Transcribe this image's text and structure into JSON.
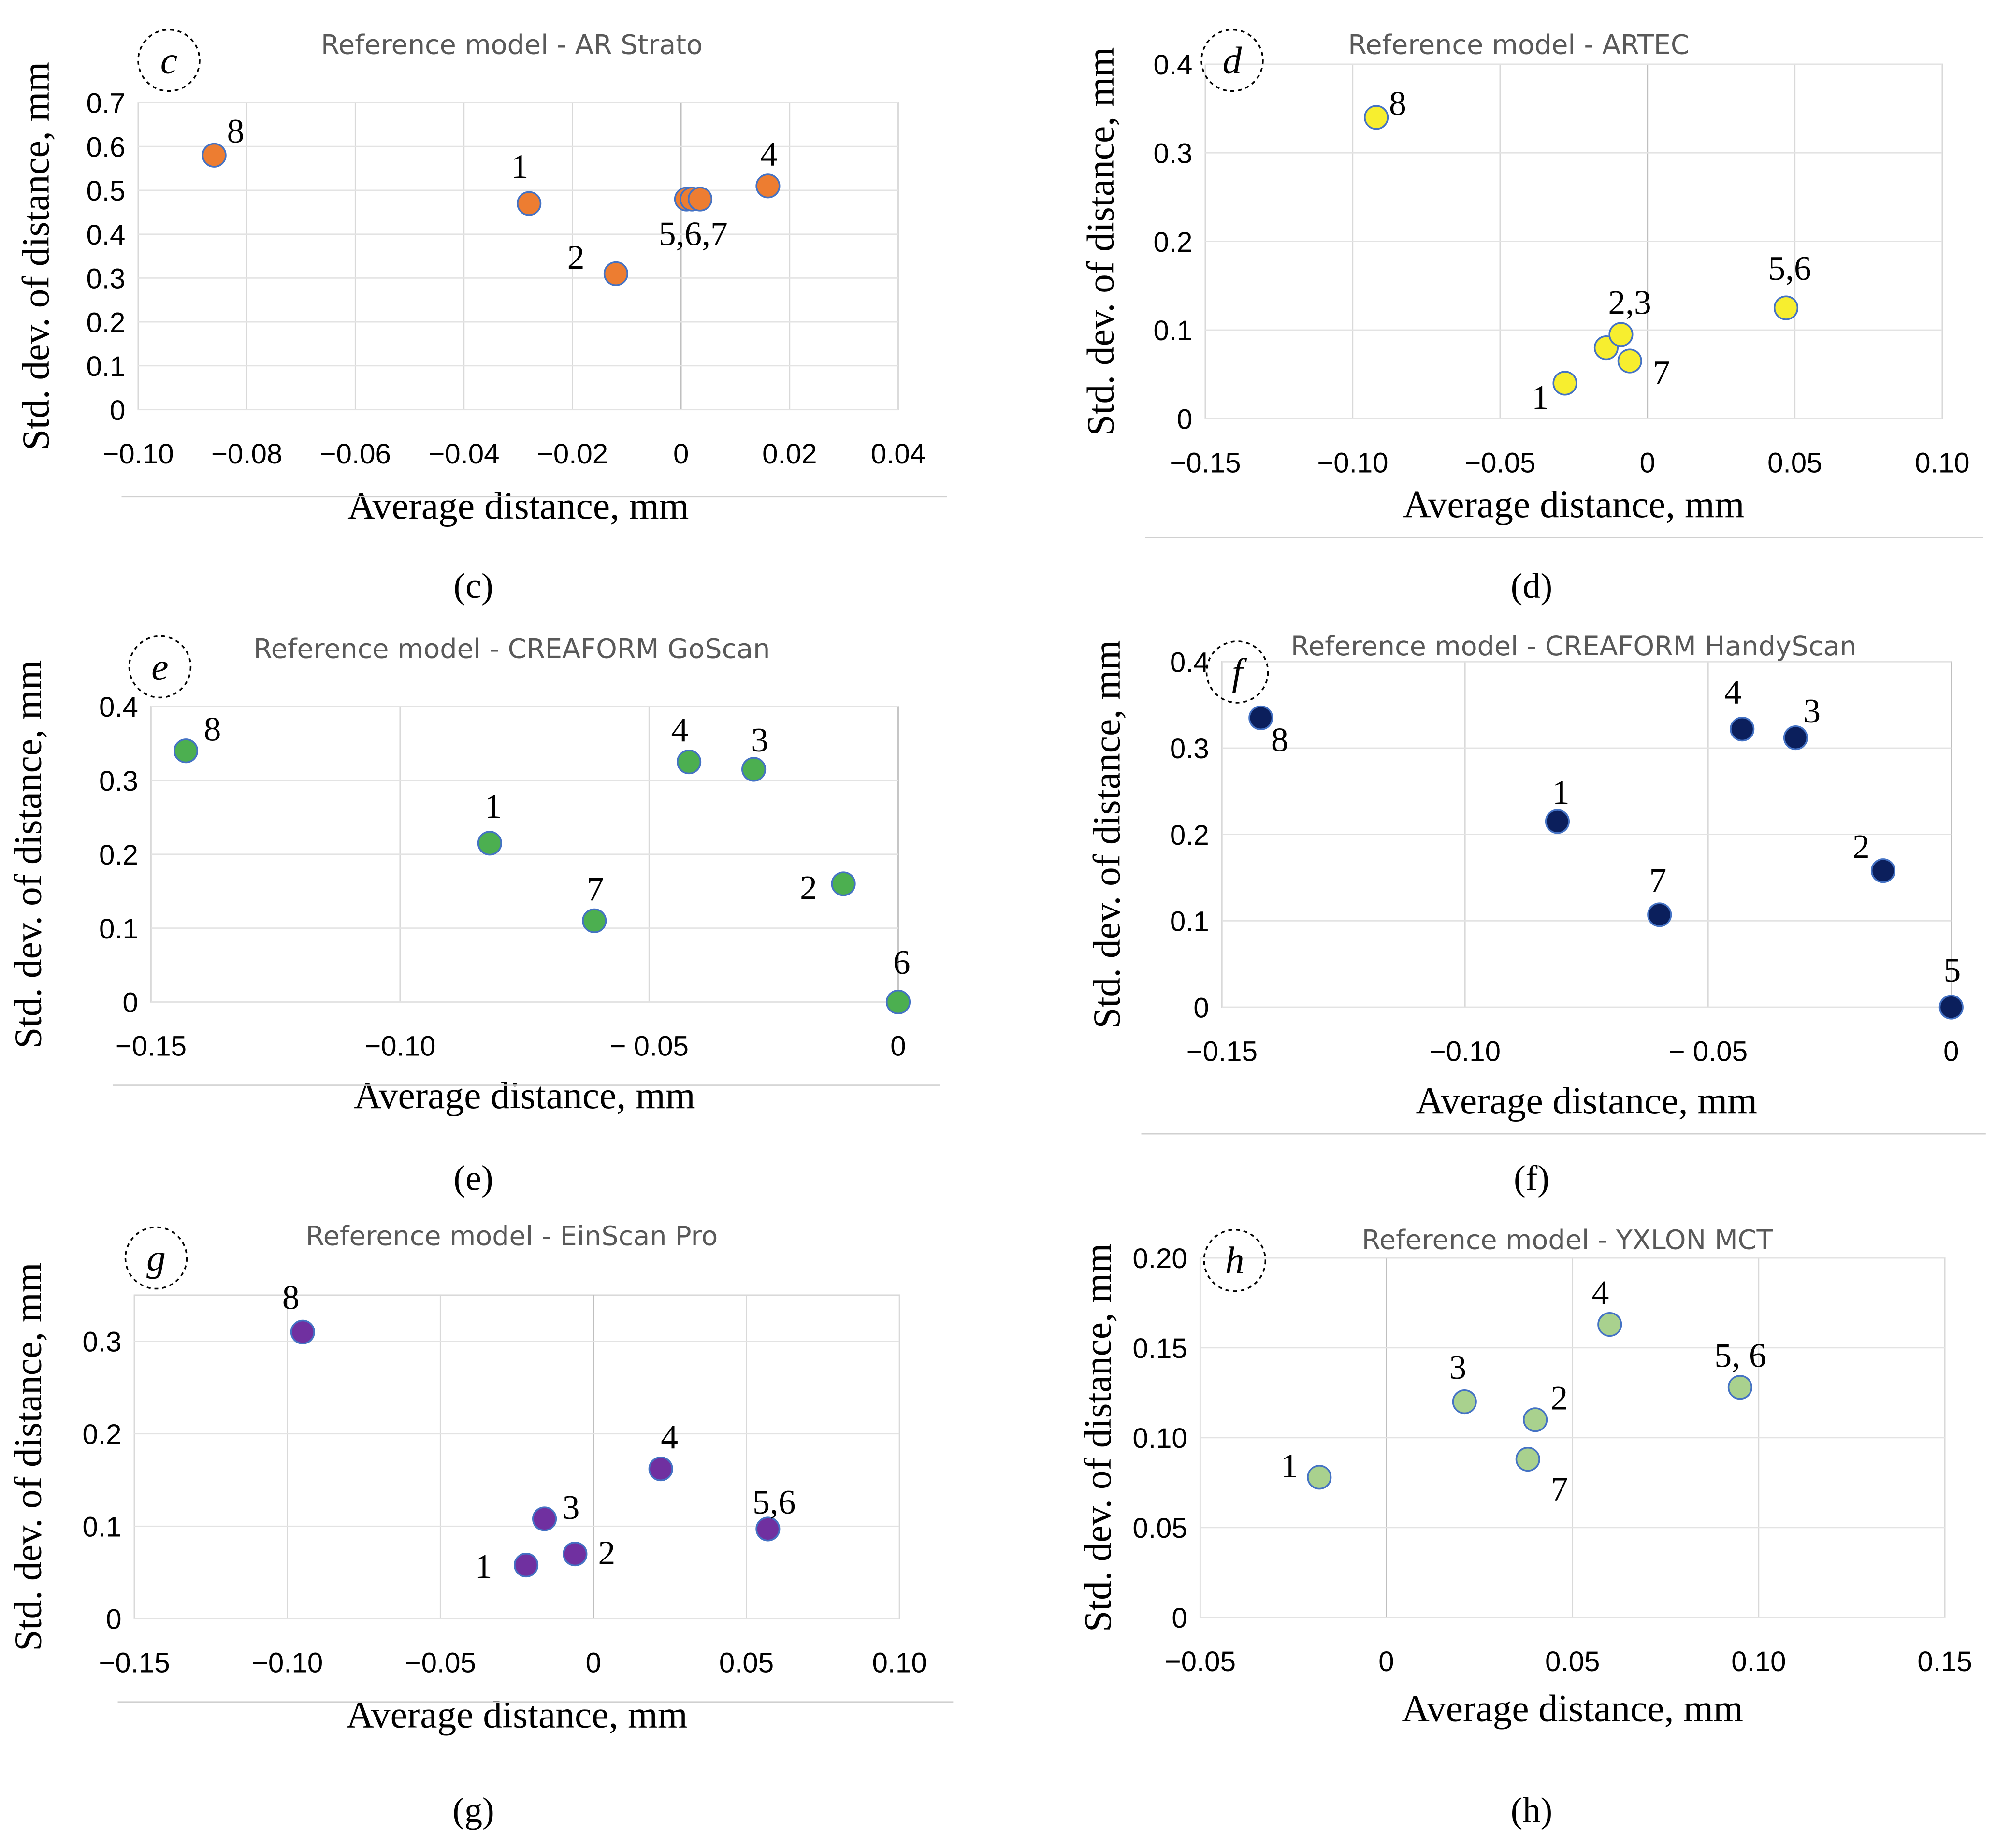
{
  "chart_data": [
    {
      "type": "scatter",
      "panel": "c",
      "title": "Reference model - AR Strato",
      "xlabel": "Average distance, mm",
      "ylabel": "Std. dev. of distance, mm",
      "caption": "(c)",
      "xlim": [
        -0.1,
        0.04
      ],
      "ylim": [
        0,
        0.7
      ],
      "xticks": [
        -0.1,
        -0.08,
        -0.06,
        -0.04,
        -0.02,
        0,
        0.02,
        0.04
      ],
      "xtick_labels": [
        "−0.10",
        "−0.08",
        "−0.06",
        "−0.04",
        "−0.02",
        "0",
        "0.02",
        "0.04"
      ],
      "yticks": [
        0,
        0.1,
        0.2,
        0.3,
        0.4,
        0.5,
        0.6,
        0.7
      ],
      "ytick_labels": [
        "0",
        "0.1",
        "0.2",
        "0.3",
        "0.4",
        "0.5",
        "0.6",
        "0.7"
      ],
      "color": "#ED7D31",
      "points": [
        {
          "label": "8",
          "x": -0.086,
          "y": 0.58
        },
        {
          "label": "1",
          "x": -0.028,
          "y": 0.47
        },
        {
          "label": "2",
          "x": -0.012,
          "y": 0.31
        },
        {
          "label": "",
          "x": 0.001,
          "y": 0.48
        },
        {
          "label": "5,6,7",
          "x": 0.002,
          "y": 0.48
        },
        {
          "label": "",
          "x": 0.0035,
          "y": 0.48
        },
        {
          "label": "4",
          "x": 0.016,
          "y": 0.51
        }
      ]
    },
    {
      "type": "scatter",
      "panel": "d",
      "title": "Reference model - ARTEC",
      "xlabel": "Average distance, mm",
      "ylabel": "Std. dev. of distance, mm",
      "caption": "(d)",
      "xlim": [
        -0.15,
        0.1
      ],
      "ylim": [
        0,
        0.4
      ],
      "xticks": [
        -0.15,
        -0.1,
        -0.05,
        0,
        0.05,
        0.1
      ],
      "xtick_labels": [
        "−0.15",
        "−0.10",
        "−0.05",
        "0",
        "0.05",
        "0.10"
      ],
      "yticks": [
        0,
        0.1,
        0.2,
        0.3,
        0.4
      ],
      "ytick_labels": [
        "0",
        "0.1",
        "0.2",
        "0.3",
        "0.4"
      ],
      "color": "#F7EE2F",
      "points": [
        {
          "label": "8",
          "x": -0.092,
          "y": 0.34
        },
        {
          "label": "1",
          "x": -0.028,
          "y": 0.04
        },
        {
          "label": "",
          "x": -0.014,
          "y": 0.08
        },
        {
          "label": "2,3",
          "x": -0.009,
          "y": 0.095
        },
        {
          "label": "7",
          "x": -0.006,
          "y": 0.065
        },
        {
          "label": "5,6",
          "x": 0.047,
          "y": 0.125
        }
      ]
    },
    {
      "type": "scatter",
      "panel": "e",
      "title": "Reference model - CREAFORM GoScan",
      "xlabel": "Average distance, mm",
      "ylabel": "Std. dev. of distance, mm",
      "caption": "(e)",
      "xlim": [
        -0.15,
        0
      ],
      "ylim": [
        0,
        0.4
      ],
      "xticks": [
        -0.15,
        -0.1,
        -0.05,
        0
      ],
      "xtick_labels": [
        "−0.15",
        "−0.10",
        "− 0.05",
        "0"
      ],
      "yticks": [
        0,
        0.1,
        0.2,
        0.3,
        0.4
      ],
      "ytick_labels": [
        "0",
        "0.1",
        "0.2",
        "0.3",
        "0.4"
      ],
      "color": "#4CAF50",
      "points": [
        {
          "label": "8",
          "x": -0.143,
          "y": 0.34
        },
        {
          "label": "1",
          "x": -0.082,
          "y": 0.215
        },
        {
          "label": "7",
          "x": -0.061,
          "y": 0.11
        },
        {
          "label": "4",
          "x": -0.042,
          "y": 0.325
        },
        {
          "label": "3",
          "x": -0.029,
          "y": 0.315
        },
        {
          "label": "2",
          "x": -0.011,
          "y": 0.16
        },
        {
          "label": "6",
          "x": 0.0,
          "y": 0.0
        }
      ]
    },
    {
      "type": "scatter",
      "panel": "f",
      "title": "Reference model - CREAFORM HandyScan",
      "xlabel": "Average distance, mm",
      "ylabel": "Std. dev. of distance, mm",
      "caption": "(f)",
      "xlim": [
        -0.15,
        0
      ],
      "ylim": [
        0,
        0.4
      ],
      "xticks": [
        -0.15,
        -0.1,
        -0.05,
        0
      ],
      "xtick_labels": [
        "−0.15",
        "−0.10",
        "− 0.05",
        "0"
      ],
      "yticks": [
        0,
        0.1,
        0.2,
        0.3,
        0.4
      ],
      "ytick_labels": [
        "0",
        "0.1",
        "0.2",
        "0.3",
        "0.4"
      ],
      "color": "#0B1F5C",
      "points": [
        {
          "label": "8",
          "x": -0.142,
          "y": 0.335
        },
        {
          "label": "1",
          "x": -0.081,
          "y": 0.215
        },
        {
          "label": "7",
          "x": -0.06,
          "y": 0.107
        },
        {
          "label": "4",
          "x": -0.043,
          "y": 0.322
        },
        {
          "label": "3",
          "x": -0.032,
          "y": 0.312
        },
        {
          "label": "2",
          "x": -0.014,
          "y": 0.158
        },
        {
          "label": "5",
          "x": 0.0,
          "y": 0.0
        }
      ]
    },
    {
      "type": "scatter",
      "panel": "g",
      "title": "Reference model - EinScan Pro",
      "xlabel": "Average distance, mm",
      "ylabel": "Std. dev. of distance, mm",
      "caption": "(g)",
      "xlim": [
        -0.15,
        0.1
      ],
      "ylim": [
        0,
        0.35
      ],
      "xticks": [
        -0.15,
        -0.1,
        -0.05,
        0,
        0.05,
        0.1
      ],
      "xtick_labels": [
        "−0.15",
        "−0.10",
        "−0.05",
        "0",
        "0.05",
        "0.10"
      ],
      "yticks": [
        0,
        0.1,
        0.2,
        0.3
      ],
      "ytick_labels": [
        "0",
        "0.1",
        "0.2",
        "0.3"
      ],
      "color": "#7030A0",
      "points": [
        {
          "label": "8",
          "x": -0.095,
          "y": 0.31
        },
        {
          "label": "4",
          "x": 0.022,
          "y": 0.162
        },
        {
          "label": "3",
          "x": -0.016,
          "y": 0.108
        },
        {
          "label": "2",
          "x": -0.006,
          "y": 0.07
        },
        {
          "label": "1",
          "x": -0.022,
          "y": 0.058
        },
        {
          "label": "5,6",
          "x": 0.057,
          "y": 0.097
        }
      ]
    },
    {
      "type": "scatter",
      "panel": "h",
      "title": "Reference model -  YXLON MCT",
      "xlabel": "Average distance, mm",
      "ylabel": "Std. dev. of distance, mm",
      "caption": "(h)",
      "xlim": [
        -0.05,
        0.15
      ],
      "ylim": [
        0,
        0.2
      ],
      "xticks": [
        -0.05,
        0,
        0.05,
        0.1,
        0.15
      ],
      "xtick_labels": [
        "−0.05",
        "0",
        "0.05",
        "0.10",
        "0.15"
      ],
      "yticks": [
        0,
        0.05,
        0.1,
        0.15,
        0.2
      ],
      "ytick_labels": [
        "0",
        "0.05",
        "0.10",
        "0.15",
        "0.20"
      ],
      "color": "#A9D18E",
      "points": [
        {
          "label": "1",
          "x": -0.018,
          "y": 0.078
        },
        {
          "label": "3",
          "x": 0.021,
          "y": 0.12
        },
        {
          "label": "2",
          "x": 0.04,
          "y": 0.11
        },
        {
          "label": "7",
          "x": 0.038,
          "y": 0.088
        },
        {
          "label": "4",
          "x": 0.06,
          "y": 0.163
        },
        {
          "label": "5, 6",
          "x": 0.095,
          "y": 0.128
        }
      ]
    }
  ]
}
